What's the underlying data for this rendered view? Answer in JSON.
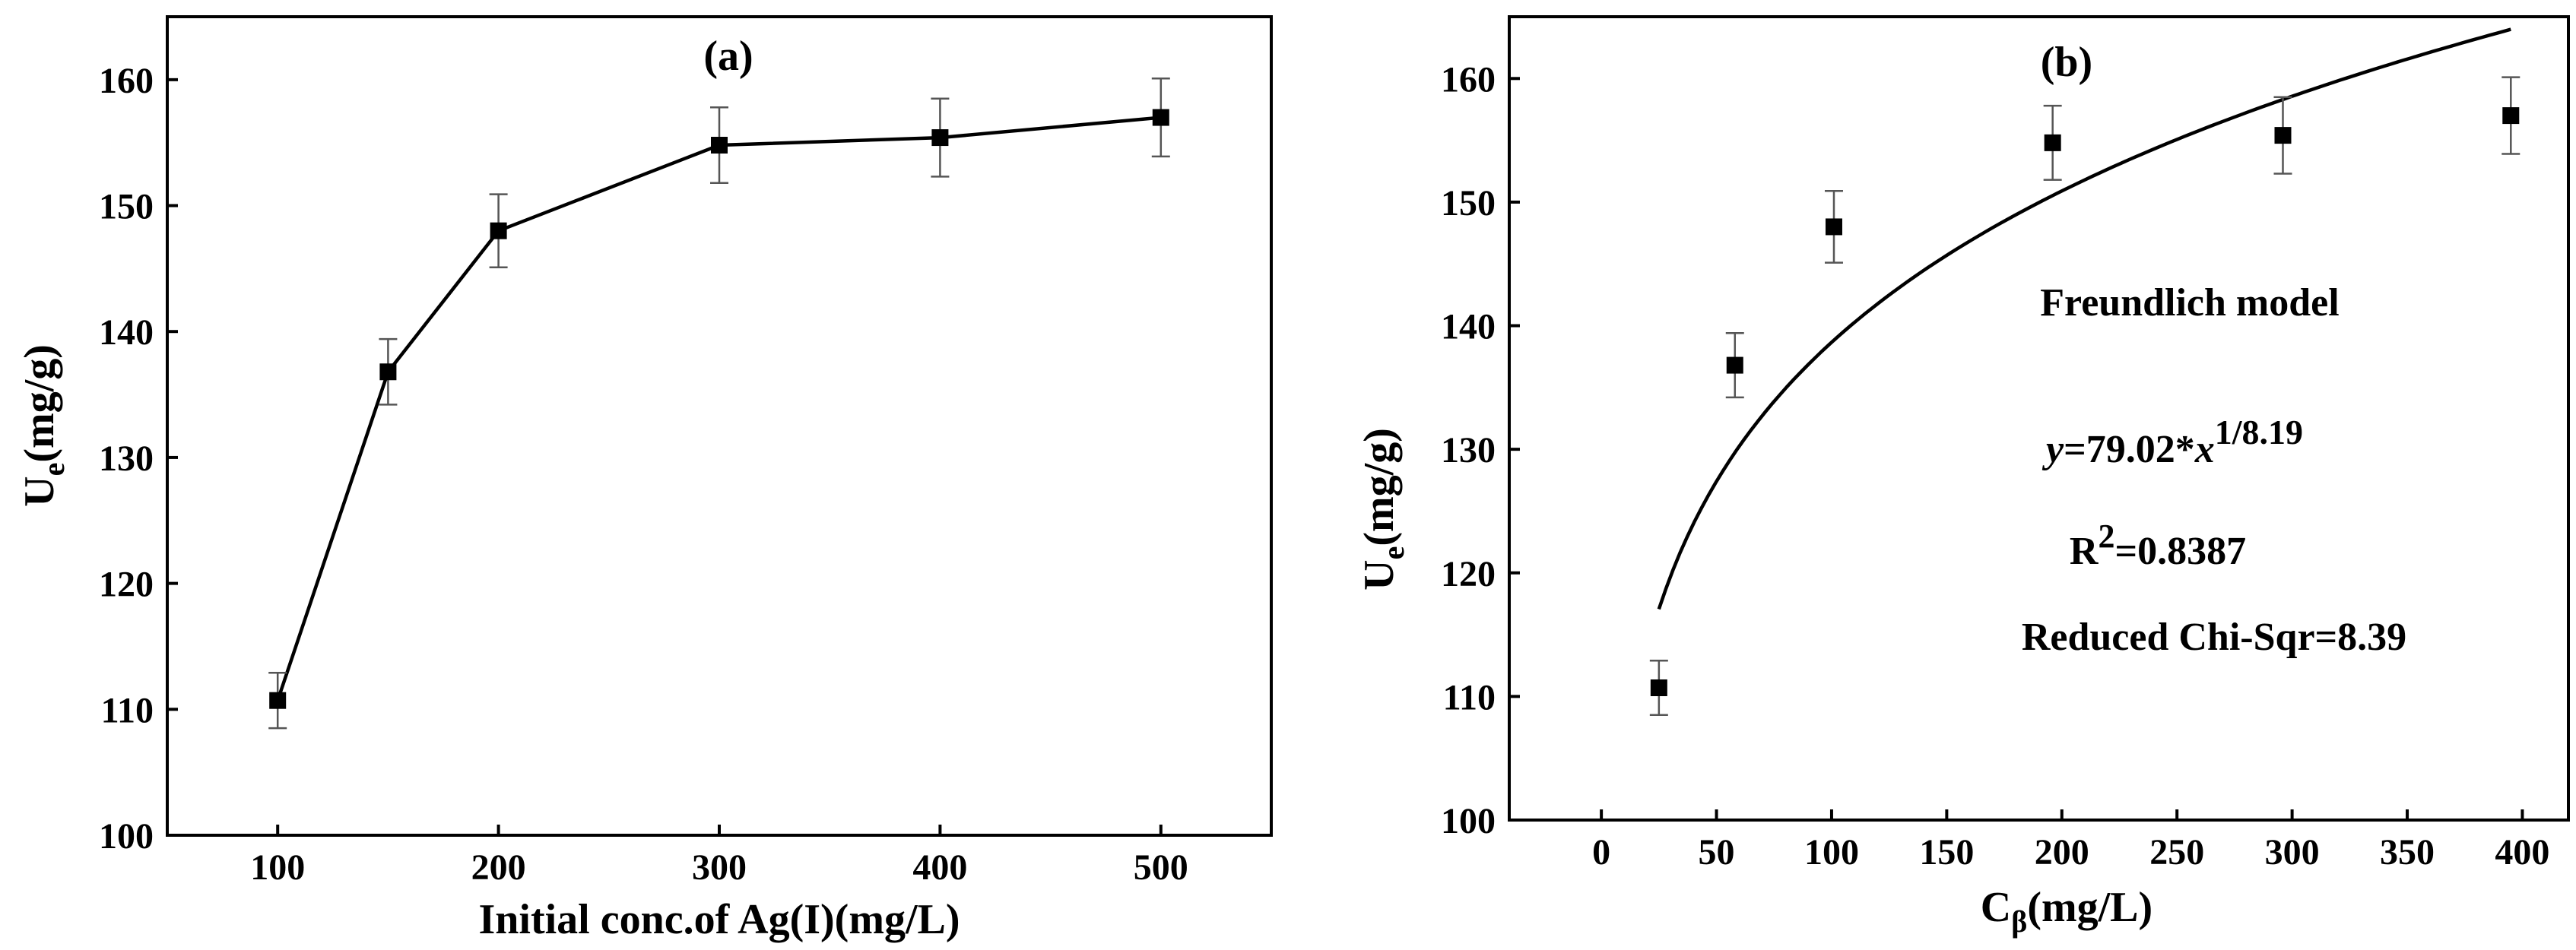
{
  "chart_data": [
    {
      "type": "line",
      "panel_label": "(a)",
      "xlabel": "Initial conc.of Ag(I)(mg/L)",
      "ylabel_main": "U",
      "ylabel_sub": "e",
      "ylabel_rest": "(mg/g)",
      "xlim": [
        50,
        550
      ],
      "ylim": [
        100,
        165
      ],
      "xticks": [
        100,
        200,
        300,
        400,
        500
      ],
      "yticks": [
        100,
        110,
        120,
        130,
        140,
        150,
        160
      ],
      "series": [
        {
          "name": "Ue",
          "x": [
            100,
            150,
            200,
            300,
            400,
            500
          ],
          "y": [
            110.7,
            136.8,
            148.0,
            154.8,
            155.4,
            157.0
          ],
          "err": [
            2.2,
            2.6,
            2.9,
            3.0,
            3.1,
            3.1
          ]
        }
      ],
      "colors": {
        "line": "#000000",
        "marker": "#000000",
        "errorbar": "#555555"
      }
    },
    {
      "type": "scatter",
      "panel_label": "(b)",
      "xlabel_main": "C",
      "xlabel_sub": "β",
      "xlabel_rest": "(mg/L)",
      "ylabel_main": "U",
      "ylabel_sub": "e",
      "ylabel_rest": "(mg/g)",
      "xlim": [
        -40,
        420
      ],
      "ylim": [
        100,
        165
      ],
      "xticks": [
        0,
        50,
        100,
        150,
        200,
        250,
        300,
        350,
        400
      ],
      "yticks": [
        100,
        110,
        120,
        130,
        140,
        150,
        160
      ],
      "series": [
        {
          "name": "Ue",
          "x": [
            25,
            58,
            101,
            196,
            296,
            395
          ],
          "y": [
            110.7,
            136.8,
            148.0,
            154.8,
            155.4,
            157.0
          ],
          "err": [
            2.2,
            2.6,
            2.9,
            3.0,
            3.1,
            3.1
          ]
        }
      ],
      "fit": {
        "name": "Freundlich model",
        "k": 79.02,
        "n": 8.19,
        "x_start": 25,
        "x_end": 395
      },
      "annotations": {
        "model": "Freundlich model",
        "eq_y": "y",
        "eq_mid": "=79.02*",
        "eq_x": "x",
        "eq_exp": "1/8.19",
        "r2_base": "R",
        "r2_sup": "2",
        "r2_val": "=0.8387",
        "chi": "Reduced Chi-Sqr=8.39"
      },
      "colors": {
        "line": "#000000",
        "marker": "#000000",
        "errorbar": "#555555"
      }
    }
  ]
}
